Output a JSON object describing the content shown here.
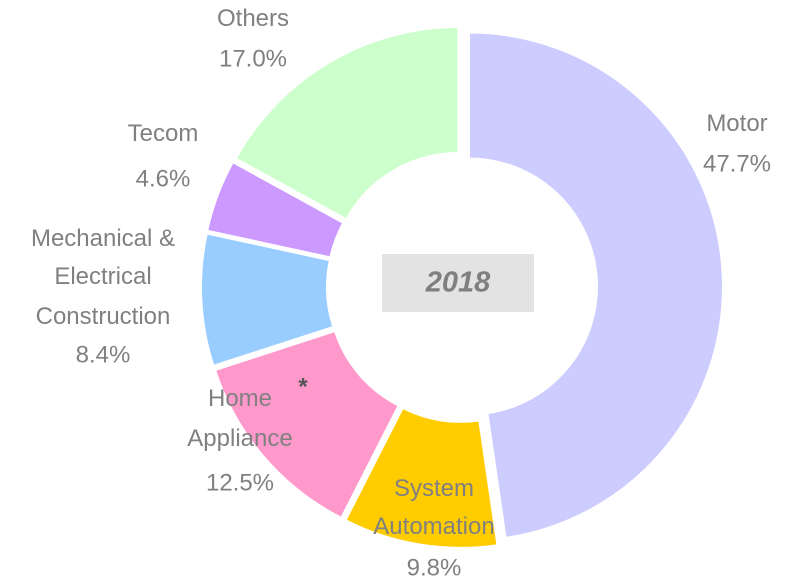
{
  "chart_data": {
    "type": "donut",
    "title": "2018",
    "categories": [
      "Motor",
      "System\nAutomation",
      "Home\nAppliance",
      "Mechanical &\nElectrical\nConstruction",
      "Tecom",
      "Others"
    ],
    "values": [
      47.7,
      9.8,
      12.5,
      8.4,
      4.6,
      17.0
    ],
    "value_labels": [
      "47.7%",
      "9.8%",
      "12.5%",
      "8.4%",
      "4.6%",
      "17.0%"
    ],
    "colors": [
      "#ccccff",
      "#ffcc00",
      "#ff99cc",
      "#99ccff",
      "#cc99ff",
      "#ccffcc"
    ],
    "annotations": [
      "*"
    ]
  }
}
